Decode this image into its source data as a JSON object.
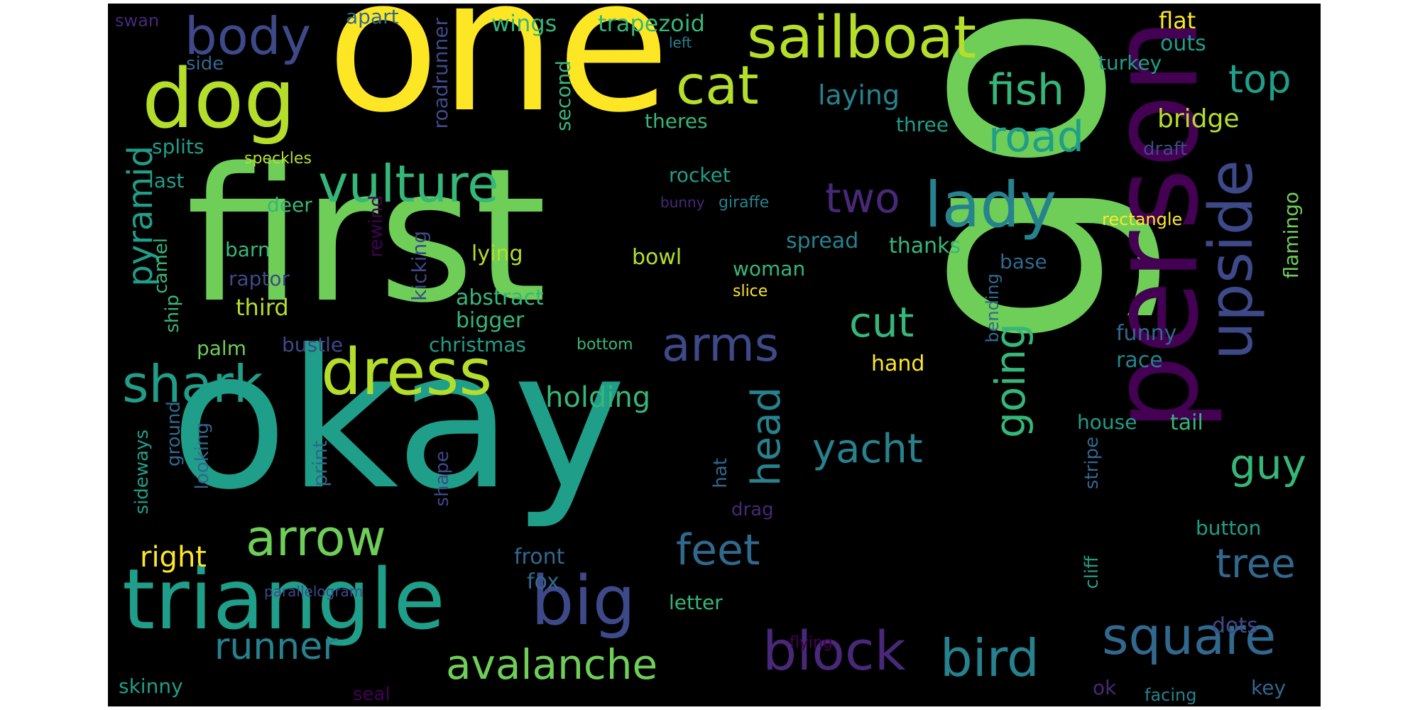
{
  "palette": {
    "yellow": "#fde725",
    "lime": "#b5de2b",
    "green": "#6ece58",
    "seagreen": "#35b779",
    "teal": "#1f9e89",
    "cyan": "#26828e",
    "blue": "#31688e",
    "indigo": "#3e4989",
    "purple": "#482878",
    "violet": "#440154"
  },
  "words": {
    "w1": "go",
    "w2": "first",
    "w3": "okay",
    "w4": "one",
    "w5": "person",
    "w6": "triangle",
    "w7": "dog",
    "w8": "sailboat",
    "w9": "body",
    "w10": "dress",
    "w11": "big",
    "w12": "lady",
    "w13": "vulture",
    "w14": "upside",
    "w15": "shark",
    "w16": "arrow",
    "w17": "block",
    "w18": "bird",
    "w19": "square",
    "w20": "avalanche",
    "w21": "cat",
    "w22": "arms",
    "w23": "fish",
    "w24": "road",
    "w25": "feet",
    "w26": "cut",
    "w27": "two",
    "w28": "guy",
    "w29": "tree",
    "w30": "top",
    "w31": "runner",
    "w32": "yacht",
    "w33": "going",
    "w34": "head",
    "w35": "pyramid",
    "w36": "laying",
    "w37": "bridge",
    "w38": "holding",
    "w39": "right",
    "w40": "wings",
    "w41": "trapezoid",
    "w42": "flat",
    "w43": "outs",
    "w44": "turkey",
    "w45": "swan",
    "w46": "apart",
    "w47": "left",
    "w48": "side",
    "w49": "roadrunner",
    "w50": "second",
    "w51": "theres",
    "w52": "three",
    "w53": "draft",
    "w54": "splits",
    "w55": "speckles",
    "w56": "last",
    "w57": "rocket",
    "w58": "deer",
    "w59": "bunny",
    "w60": "giraffe",
    "w61": "rectangle",
    "w62": "flamingo",
    "w63": "camel",
    "w64": "rewind",
    "w65": "barn",
    "w66": "lying",
    "w67": "bowl",
    "w68": "spread",
    "w69": "thanks",
    "w70": "base",
    "w71": "raptor",
    "w72": "kicking",
    "w73": "woman",
    "w74": "third",
    "w75": "abstract",
    "w76": "slice",
    "w77": "ship",
    "w78": "bigger",
    "w79": "bending",
    "w80": "palm",
    "w81": "bustle",
    "w82": "christmas",
    "w83": "bottom",
    "w84": "funny",
    "w85": "hand",
    "w86": "race",
    "w87": "house",
    "w88": "tail",
    "w89": "ground",
    "w90": "sideways",
    "w91": "looking",
    "w92": "print",
    "w93": "shape",
    "w94": "hat",
    "w95": "drag",
    "w96": "stripe",
    "w97": "cliff",
    "w98": "button",
    "w99": "front",
    "w100": "fox",
    "w101": "parallelogram",
    "w102": "letter",
    "w103": "dots",
    "w104": "flying",
    "w105": "skinny",
    "w106": "seal",
    "w107": "ok",
    "w108": "facing",
    "w109": "key"
  }
}
